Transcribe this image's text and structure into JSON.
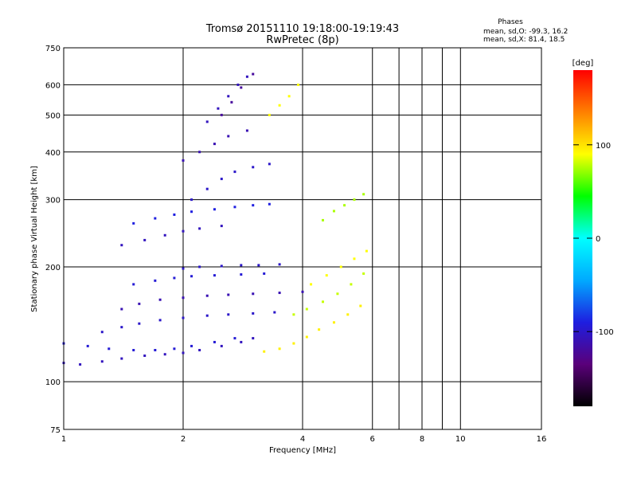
{
  "chart_data": {
    "type": "scatter",
    "title_line1": "Tromsø 20151110 19:18:00-19:19:43",
    "title_line2": "RwPretec (8p)",
    "xlabel": "Frequency [MHz]",
    "ylabel": "Stationary phase Virtual Height [km]",
    "x_scale": "log",
    "y_scale": "log",
    "xlim": [
      1,
      16
    ],
    "ylim": [
      75,
      750
    ],
    "x_ticks": [
      1,
      2,
      4,
      6,
      8,
      10,
      16
    ],
    "x_tick_labels": [
      "1",
      "2",
      "4",
      "6",
      "8",
      "10",
      "16"
    ],
    "x_gridlines": [
      2,
      4,
      6,
      7,
      8,
      9,
      10
    ],
    "y_ticks": [
      75,
      100,
      200,
      300,
      400,
      500,
      600,
      750
    ],
    "y_tick_labels": [
      "75",
      "100",
      "200",
      "300",
      "400",
      "500",
      "600",
      "750"
    ],
    "grid": true,
    "stats": {
      "heading": "Phases",
      "o_line": "mean, sd,O: -99.3, 16.2",
      "x_line": "mean, sd,X:  81.4, 18.5"
    },
    "colorbar": {
      "label": "[deg]",
      "range": [
        -180,
        180
      ],
      "ticks": [
        100,
        0,
        -100
      ],
      "tick_labels": [
        "100",
        "0",
        "-100"
      ],
      "colors": [
        "#000000",
        "#5a007a",
        "#1e1ee0",
        "#00aaff",
        "#00ffff",
        "#00ff00",
        "#ffff00",
        "#ff8000",
        "#ff0000"
      ]
    },
    "series": [
      {
        "mode": "O",
        "traces": [
          {
            "x": [
              1.0,
              1.1,
              1.25,
              1.4,
              1.6,
              1.8,
              2.0,
              2.2,
              2.5,
              2.8,
              3.0
            ],
            "y": [
              112,
              111,
              113,
              115,
              117,
              118,
              119,
              121,
              124,
              127,
              130
            ],
            "phase": -105
          },
          {
            "x": [
              1.0,
              1.15,
              1.3,
              1.5,
              1.7,
              1.9,
              2.1,
              2.4,
              2.7
            ],
            "y": [
              126,
              124,
              122,
              121,
              121,
              122,
              124,
              127,
              130
            ],
            "phase": -95
          },
          {
            "x": [
              1.25,
              1.4,
              1.55,
              1.75,
              2.0,
              2.3,
              2.6,
              3.0,
              3.4
            ],
            "y": [
              135,
              139,
              142,
              145,
              147,
              149,
              150,
              151,
              152
            ],
            "phase": -100
          },
          {
            "x": [
              1.4,
              1.55,
              1.75,
              2.0,
              2.3,
              2.6,
              3.0,
              3.5,
              4.0
            ],
            "y": [
              155,
              160,
              164,
              166,
              168,
              169,
              170,
              171,
              172
            ],
            "phase": -110
          },
          {
            "x": [
              1.5,
              1.7,
              1.9,
              2.1,
              2.4,
              2.8,
              3.2
            ],
            "y": [
              180,
              184,
              187,
              189,
              190,
              191,
              192
            ],
            "phase": -95
          },
          {
            "x": [
              2.0,
              2.2,
              2.5,
              2.8,
              3.1,
              3.5
            ],
            "y": [
              198,
              200,
              201,
              202,
              202,
              203
            ],
            "phase": -100
          },
          {
            "x": [
              1.4,
              1.6,
              1.8,
              2.0,
              2.2,
              2.5
            ],
            "y": [
              228,
              235,
              242,
              248,
              252,
              256
            ],
            "phase": -105
          },
          {
            "x": [
              1.5,
              1.7,
              1.9,
              2.1,
              2.4,
              2.7,
              3.0,
              3.3
            ],
            "y": [
              260,
              268,
              274,
              279,
              283,
              287,
              290,
              292
            ],
            "phase": -90
          },
          {
            "x": [
              2.1,
              2.3,
              2.5,
              2.7,
              3.0,
              3.3
            ],
            "y": [
              300,
              320,
              340,
              355,
              365,
              372
            ],
            "phase": -100
          },
          {
            "x": [
              2.0,
              2.2,
              2.4,
              2.6,
              2.9
            ],
            "y": [
              380,
              400,
              420,
              440,
              455
            ],
            "phase": -110
          },
          {
            "x": [
              2.3,
              2.45,
              2.6,
              2.75,
              2.9
            ],
            "y": [
              480,
              520,
              560,
              600,
              630
            ],
            "phase": -105
          },
          {
            "x": [
              2.5,
              2.65,
              2.8,
              3.0
            ],
            "y": [
              500,
              540,
              590,
              640
            ],
            "phase": -120
          }
        ]
      },
      {
        "mode": "X",
        "traces": [
          {
            "x": [
              3.2,
              3.5,
              3.8,
              4.1,
              4.4,
              4.8,
              5.2,
              5.6
            ],
            "y": [
              120,
              122,
              126,
              131,
              137,
              143,
              150,
              158
            ],
            "phase": 95
          },
          {
            "x": [
              3.8,
              4.1,
              4.5,
              4.9,
              5.3,
              5.7
            ],
            "y": [
              150,
              155,
              162,
              170,
              180,
              192
            ],
            "phase": 80
          },
          {
            "x": [
              4.2,
              4.6,
              5.0,
              5.4,
              5.8
            ],
            "y": [
              180,
              190,
              200,
              210,
              220
            ],
            "phase": 90
          },
          {
            "x": [
              3.3,
              3.5,
              3.7,
              3.9
            ],
            "y": [
              500,
              530,
              560,
              600
            ],
            "phase": 90
          },
          {
            "x": [
              4.5,
              4.8,
              5.1,
              5.4,
              5.7
            ],
            "y": [
              265,
              280,
              290,
              300,
              310
            ],
            "phase": 75
          }
        ]
      }
    ]
  }
}
